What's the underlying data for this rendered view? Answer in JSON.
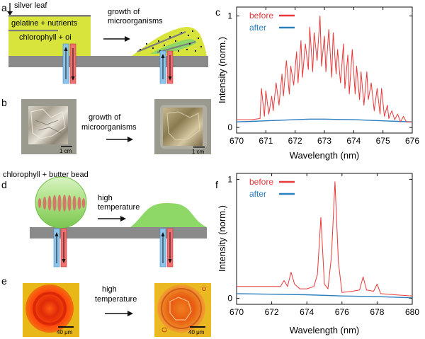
{
  "panels": {
    "a": {
      "letter": "a",
      "silver_label": "silver leaf",
      "layer1_label": "gelatine + nutrients",
      "layer2_label": "chlorophyll + oi",
      "growth_label_1": "growth of",
      "growth_label_2": "microorganisms"
    },
    "b": {
      "letter": "b",
      "caption_1": "growth of",
      "caption_2": "microorganisms",
      "scalebar_left": "1 cm",
      "scalebar_right": "1 cm"
    },
    "d": {
      "letter": "d",
      "title": "chlorophyll + butter bead",
      "caption_1": "high",
      "caption_2": "temperature"
    },
    "e": {
      "letter": "e",
      "caption_1": "high",
      "caption_2": "temperature",
      "scalebar_left": "40 μm",
      "scalebar_right": "40 μm"
    }
  },
  "colors": {
    "before": "#e8383a",
    "after": "#2a7fc0",
    "gel": "#d8e43c",
    "blob": "#8ed867",
    "substrate": "#8a8a8a"
  },
  "chart_data": [
    {
      "panel": "c",
      "type": "line",
      "xlabel": "Wavelength (nm)",
      "ylabel": "Intensity (norm.)",
      "xlim": [
        670,
        676
      ],
      "ylim": [
        -0.05,
        1.08
      ],
      "x_ticks": [
        "670",
        "671",
        "672",
        "673",
        "674",
        "675",
        "676"
      ],
      "y_ticks": [
        "0",
        "1"
      ],
      "legend_position": "top-left",
      "series": [
        {
          "name": "before",
          "color": "#e8383a",
          "x": [
            670.0,
            670.5,
            670.8,
            670.85,
            670.95,
            671.0,
            671.1,
            671.2,
            671.25,
            671.35,
            671.45,
            671.55,
            671.6,
            671.7,
            671.8,
            671.85,
            671.95,
            672.05,
            672.1,
            672.2,
            672.25,
            672.35,
            672.45,
            672.5,
            672.6,
            672.65,
            672.75,
            672.85,
            672.9,
            673.0,
            673.05,
            673.15,
            673.25,
            673.3,
            673.4,
            673.45,
            673.55,
            673.65,
            673.7,
            673.8,
            673.85,
            673.95,
            674.05,
            674.1,
            674.2,
            674.25,
            674.35,
            674.45,
            674.5,
            674.6,
            674.7,
            674.8,
            674.9,
            674.95,
            675.05,
            675.15,
            675.2,
            675.3,
            675.4,
            675.5,
            675.6,
            675.7,
            675.8,
            675.9,
            676.0
          ],
          "y": [
            0.07,
            0.07,
            0.08,
            0.35,
            0.1,
            0.33,
            0.12,
            0.28,
            0.15,
            0.4,
            0.2,
            0.48,
            0.28,
            0.6,
            0.3,
            0.55,
            0.38,
            0.68,
            0.4,
            0.78,
            0.45,
            0.75,
            0.52,
            0.9,
            0.5,
            0.85,
            0.6,
            1.0,
            0.55,
            0.82,
            0.5,
            0.88,
            0.45,
            0.85,
            0.48,
            0.7,
            0.4,
            0.75,
            0.35,
            0.65,
            0.3,
            0.7,
            0.3,
            0.55,
            0.25,
            0.5,
            0.2,
            0.5,
            0.25,
            0.4,
            0.15,
            0.35,
            0.12,
            0.35,
            0.1,
            0.2,
            0.08,
            0.15,
            0.07,
            0.12,
            0.05,
            0.1,
            0.05,
            0.05,
            0.05
          ]
        },
        {
          "name": "after",
          "color": "#2a7fc0",
          "x": [
            670.0,
            670.5,
            671.0,
            671.5,
            672.0,
            672.5,
            673.0,
            673.5,
            674.0,
            674.5,
            675.0,
            675.5,
            676.0
          ],
          "y": [
            0.05,
            0.055,
            0.06,
            0.065,
            0.07,
            0.075,
            0.075,
            0.072,
            0.07,
            0.065,
            0.06,
            0.055,
            0.05
          ]
        }
      ]
    },
    {
      "panel": "f",
      "type": "line",
      "xlabel": "Wavelength (nm)",
      "ylabel": "Intensity (norm.)",
      "xlim": [
        670,
        680
      ],
      "ylim": [
        -0.05,
        1.05
      ],
      "x_ticks": [
        "670",
        "672",
        "674",
        "676",
        "678",
        "680"
      ],
      "y_ticks": [
        "0",
        "1"
      ],
      "legend_position": "top-left",
      "series": [
        {
          "name": "before",
          "color": "#e8383a",
          "x": [
            670.0,
            671.0,
            672.0,
            672.5,
            672.7,
            672.9,
            673.1,
            673.3,
            673.6,
            674.0,
            674.4,
            674.6,
            674.8,
            675.0,
            675.2,
            675.4,
            675.6,
            675.8,
            676.0,
            676.6,
            677.0,
            677.2,
            677.4,
            677.8,
            678.0,
            678.2,
            679.0,
            680.0
          ],
          "y": [
            0.1,
            0.1,
            0.1,
            0.1,
            0.15,
            0.1,
            0.22,
            0.12,
            0.08,
            0.08,
            0.1,
            0.2,
            0.68,
            0.12,
            0.08,
            0.35,
            0.98,
            0.3,
            0.05,
            0.06,
            0.07,
            0.18,
            0.07,
            0.06,
            0.12,
            0.04,
            0.03,
            0.02
          ]
        },
        {
          "name": "after",
          "color": "#2a7fc0",
          "x": [
            670.0,
            672.0,
            674.0,
            676.0,
            678.0,
            680.0
          ],
          "y": [
            0.04,
            0.035,
            0.03,
            0.02,
            0.015,
            0.005
          ]
        }
      ]
    }
  ]
}
